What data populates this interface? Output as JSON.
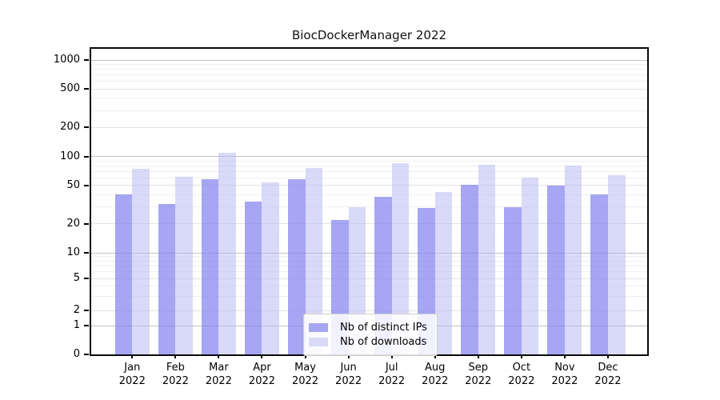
{
  "chart_data": {
    "type": "bar",
    "title": "BiocDockerManager 2022",
    "year_label": "2022",
    "categories": [
      "Jan",
      "Feb",
      "Mar",
      "Apr",
      "May",
      "Jun",
      "Jul",
      "Aug",
      "Sep",
      "Oct",
      "Nov",
      "Dec"
    ],
    "series": [
      {
        "name": "Nb of distinct IPs",
        "color": "#8383ee",
        "fill_alpha": 0.72,
        "values": [
          40,
          32,
          58,
          34,
          58,
          22,
          38,
          29,
          51,
          30,
          50,
          40
        ]
      },
      {
        "name": "Nb of downloads",
        "color": "#b9b9f2",
        "fill_alpha": 0.55,
        "values": [
          74,
          62,
          110,
          54,
          76,
          30,
          85,
          43,
          82,
          60,
          80,
          64
        ]
      }
    ],
    "yticks": [
      0,
      1,
      2,
      5,
      10,
      20,
      50,
      100,
      200,
      500,
      1000
    ],
    "ylim": [
      0,
      1300
    ],
    "yscale": "log-like",
    "xlabel": "",
    "ylabel": "",
    "grid": true,
    "legend_position": "lower-center-inside"
  },
  "colors": {
    "bar_distinct_ips_composite": "#a6a6f3",
    "bar_downloads_composite": "#d9d9f8",
    "grid_decade": "#c2c2c2",
    "grid_labeled_minor": "#e3e3e3",
    "grid_unlabeled_minor": "#efefef",
    "axis": "#0a0a0a",
    "background": "#ffffff"
  }
}
